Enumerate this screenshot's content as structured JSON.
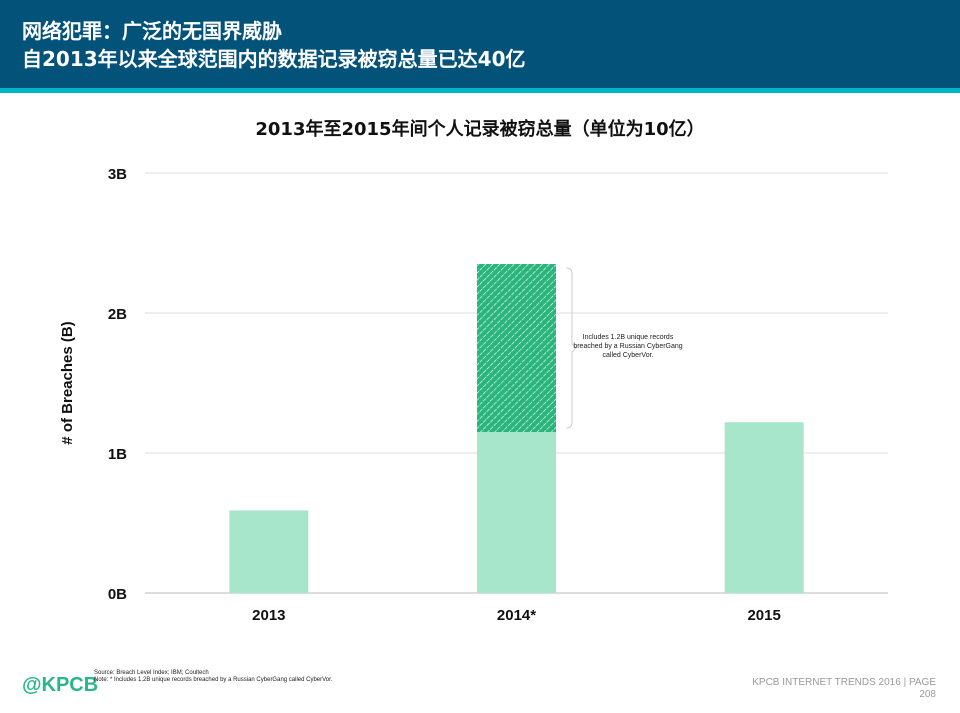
{
  "header": {
    "title_line1": "网络犯罪：广泛的无国界威胁",
    "title_line2": "自2013年以来全球范围内的数据记录被窃总量已达40亿"
  },
  "colors": {
    "header": "#03527a",
    "stripe": "#00b5cc",
    "bar": "#a8e6cc",
    "hatch": "#2bb57e"
  },
  "chart_data": {
    "type": "bar",
    "title": "2013年至2015年间个人记录被窃总量（单位为10亿）",
    "ylabel": "# of Breaches (B)",
    "xlabel": "",
    "categories": [
      "2013",
      "2014*",
      "2015"
    ],
    "series": [
      {
        "values": [
          0.59,
          1.15,
          1.22
        ]
      },
      {
        "values": [
          0,
          1.2,
          0
        ],
        "pattern": "hatched"
      }
    ],
    "stacked": true,
    "ylim": [
      0,
      3
    ],
    "yticks": [
      {
        "v": 0,
        "label": "0B"
      },
      {
        "v": 1,
        "label": "1B"
      },
      {
        "v": 2,
        "label": "2B"
      },
      {
        "v": 3,
        "label": "3B"
      }
    ],
    "grid": true,
    "annotation": "Includes 1.2B unique records breached by a Russian CyberGang called CyberVor."
  },
  "footer": {
    "logo": "@KPCB",
    "source": "Source: Breach Level Index; IBM; Coultech",
    "note": "Note: * Includes 1.2B unique records breached by a Russian CyberGang called CyberVor.",
    "page_label": "KPCB INTERNET TRENDS 2016  |  PAGE",
    "page_number": "208"
  }
}
